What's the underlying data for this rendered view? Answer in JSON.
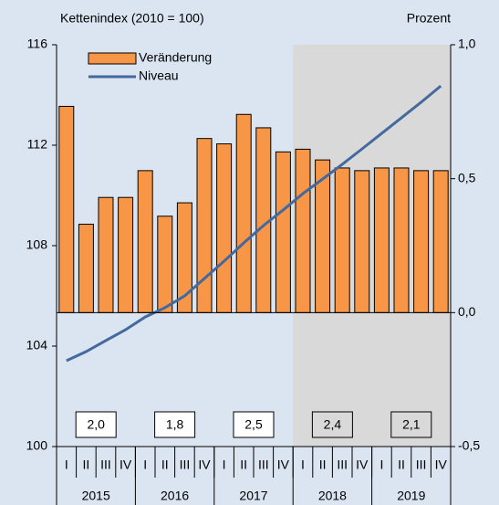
{
  "chart_data": {
    "type": "bar-line",
    "y_axis_label": "Kettenindex (2010 = 100)",
    "y2_axis_label": "Prozent",
    "categories": [
      "I",
      "II",
      "III",
      "IV",
      "I",
      "II",
      "III",
      "IV",
      "I",
      "II",
      "III",
      "IV",
      "I",
      "II",
      "III",
      "IV",
      "I",
      "II",
      "III",
      "IV"
    ],
    "years": [
      "2015",
      "2016",
      "2017",
      "2018",
      "2019"
    ],
    "annual_labels": [
      "2,0",
      "1,8",
      "2,5",
      "2,4",
      "2,1"
    ],
    "series": [
      {
        "name": "Veränderung",
        "type": "bar",
        "axis": "y2",
        "color": "#f79646",
        "values": [
          0.77,
          0.33,
          0.43,
          0.43,
          0.53,
          0.36,
          0.41,
          0.65,
          0.63,
          0.74,
          0.69,
          0.6,
          0.61,
          0.57,
          0.54,
          0.53,
          0.54,
          0.54,
          0.53,
          0.53
        ]
      },
      {
        "name": "Niveau",
        "type": "line",
        "axis": "y",
        "color": "#44699e",
        "values": [
          103.42,
          103.78,
          104.22,
          104.65,
          105.16,
          105.53,
          106.0,
          106.69,
          107.38,
          108.11,
          108.8,
          109.42,
          110.07,
          110.65,
          111.24,
          111.85,
          112.47,
          113.09,
          113.71,
          114.36
        ]
      }
    ],
    "ylim": [
      100,
      116
    ],
    "yticks": [
      100,
      104,
      108,
      112,
      116
    ],
    "y2lim": [
      -0.5,
      1.0
    ],
    "y2ticks": [
      {
        "value": -0.5,
        "label": "-0,5"
      },
      {
        "value": 0,
        "label": "0,0"
      },
      {
        "value": 0.5,
        "label": "0,5"
      },
      {
        "value": 1.0,
        "label": "1,0"
      }
    ]
  }
}
